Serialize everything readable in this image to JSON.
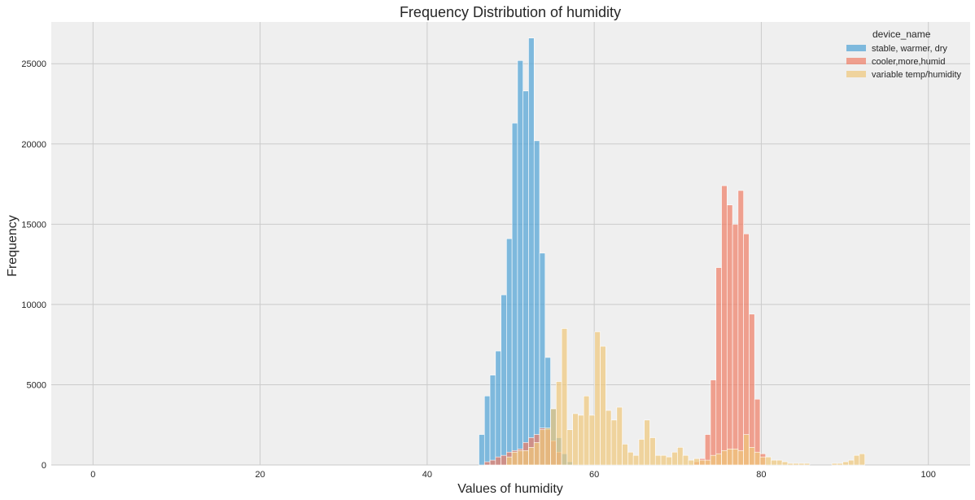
{
  "chart_data": {
    "type": "bar",
    "subtype": "histogram-overlay",
    "title": "Frequency Distribution of humidity",
    "xlabel": "Values of humidity",
    "ylabel": "Frequency",
    "xlim": [
      -5,
      105
    ],
    "ylim": [
      0,
      27600
    ],
    "x_ticks": [
      0,
      20,
      40,
      60,
      80,
      100
    ],
    "y_ticks": [
      0,
      5000,
      10000,
      15000,
      20000,
      25000
    ],
    "grid": true,
    "bin_width": 0.66,
    "legend": {
      "title": "device_name",
      "placement": "top-right"
    },
    "series": [
      {
        "name": "stable, warmer, dry",
        "color": "#4fa3d6",
        "bins": [
          {
            "x": 46.2,
            "y": 1900
          },
          {
            "x": 46.86,
            "y": 4300
          },
          {
            "x": 47.52,
            "y": 5600
          },
          {
            "x": 48.18,
            "y": 7100
          },
          {
            "x": 48.84,
            "y": 10600
          },
          {
            "x": 49.5,
            "y": 14100
          },
          {
            "x": 50.16,
            "y": 21300
          },
          {
            "x": 50.82,
            "y": 25200
          },
          {
            "x": 51.48,
            "y": 23300
          },
          {
            "x": 52.14,
            "y": 26600
          },
          {
            "x": 52.8,
            "y": 20200
          },
          {
            "x": 53.46,
            "y": 13200
          },
          {
            "x": 54.12,
            "y": 6700
          },
          {
            "x": 54.78,
            "y": 3500
          },
          {
            "x": 55.44,
            "y": 1700
          },
          {
            "x": 56.1,
            "y": 700
          },
          {
            "x": 56.76,
            "y": 200
          }
        ]
      },
      {
        "name": "cooler,more,humid",
        "color": "#f07d65",
        "bins": [
          {
            "x": 46.86,
            "y": 200
          },
          {
            "x": 47.52,
            "y": 300
          },
          {
            "x": 48.18,
            "y": 500
          },
          {
            "x": 48.84,
            "y": 600
          },
          {
            "x": 49.5,
            "y": 800
          },
          {
            "x": 50.16,
            "y": 900
          },
          {
            "x": 50.82,
            "y": 1000
          },
          {
            "x": 51.48,
            "y": 1400
          },
          {
            "x": 52.14,
            "y": 1700
          },
          {
            "x": 52.8,
            "y": 1900
          },
          {
            "x": 53.46,
            "y": 2300
          },
          {
            "x": 54.12,
            "y": 2200
          },
          {
            "x": 54.78,
            "y": 1500
          },
          {
            "x": 55.44,
            "y": 800
          },
          {
            "x": 71.94,
            "y": 200
          },
          {
            "x": 72.6,
            "y": 400
          },
          {
            "x": 73.26,
            "y": 1900
          },
          {
            "x": 73.92,
            "y": 5300
          },
          {
            "x": 74.58,
            "y": 12300
          },
          {
            "x": 75.24,
            "y": 17400
          },
          {
            "x": 75.9,
            "y": 16200
          },
          {
            "x": 76.56,
            "y": 15000
          },
          {
            "x": 77.22,
            "y": 17100
          },
          {
            "x": 77.88,
            "y": 14400
          },
          {
            "x": 78.54,
            "y": 9400
          },
          {
            "x": 79.2,
            "y": 4100
          },
          {
            "x": 79.86,
            "y": 700
          }
        ]
      },
      {
        "name": "variable temp/humidity",
        "color": "#f0c87a",
        "bins": [
          {
            "x": 49.5,
            "y": 500
          },
          {
            "x": 50.16,
            "y": 800
          },
          {
            "x": 50.82,
            "y": 900
          },
          {
            "x": 51.48,
            "y": 900
          },
          {
            "x": 52.14,
            "y": 1100
          },
          {
            "x": 52.8,
            "y": 1400
          },
          {
            "x": 53.46,
            "y": 2200
          },
          {
            "x": 54.12,
            "y": 2300
          },
          {
            "x": 54.78,
            "y": 3500
          },
          {
            "x": 55.44,
            "y": 5200
          },
          {
            "x": 56.1,
            "y": 8500
          },
          {
            "x": 56.76,
            "y": 2200
          },
          {
            "x": 57.42,
            "y": 3200
          },
          {
            "x": 58.08,
            "y": 3100
          },
          {
            "x": 58.74,
            "y": 4300
          },
          {
            "x": 59.4,
            "y": 3100
          },
          {
            "x": 60.06,
            "y": 8300
          },
          {
            "x": 60.72,
            "y": 7400
          },
          {
            "x": 61.38,
            "y": 3400
          },
          {
            "x": 62.04,
            "y": 2800
          },
          {
            "x": 62.7,
            "y": 3600
          },
          {
            "x": 63.36,
            "y": 1300
          },
          {
            "x": 64.02,
            "y": 800
          },
          {
            "x": 64.68,
            "y": 600
          },
          {
            "x": 65.34,
            "y": 1600
          },
          {
            "x": 66.0,
            "y": 2800
          },
          {
            "x": 66.66,
            "y": 1700
          },
          {
            "x": 67.32,
            "y": 600
          },
          {
            "x": 67.98,
            "y": 600
          },
          {
            "x": 68.64,
            "y": 500
          },
          {
            "x": 69.3,
            "y": 800
          },
          {
            "x": 69.96,
            "y": 1100
          },
          {
            "x": 70.62,
            "y": 600
          },
          {
            "x": 71.28,
            "y": 300
          },
          {
            "x": 71.94,
            "y": 400
          },
          {
            "x": 72.6,
            "y": 300
          },
          {
            "x": 73.26,
            "y": 300
          },
          {
            "x": 73.92,
            "y": 600
          },
          {
            "x": 74.58,
            "y": 700
          },
          {
            "x": 75.24,
            "y": 900
          },
          {
            "x": 75.9,
            "y": 1000
          },
          {
            "x": 76.56,
            "y": 1000
          },
          {
            "x": 77.22,
            "y": 900
          },
          {
            "x": 77.88,
            "y": 1900
          },
          {
            "x": 78.54,
            "y": 1100
          },
          {
            "x": 79.2,
            "y": 800
          },
          {
            "x": 79.86,
            "y": 500
          },
          {
            "x": 80.52,
            "y": 500
          },
          {
            "x": 81.18,
            "y": 300
          },
          {
            "x": 81.84,
            "y": 300
          },
          {
            "x": 82.5,
            "y": 200
          },
          {
            "x": 83.16,
            "y": 100
          },
          {
            "x": 83.82,
            "y": 100
          },
          {
            "x": 84.48,
            "y": 100
          },
          {
            "x": 85.14,
            "y": 100
          },
          {
            "x": 88.44,
            "y": 100
          },
          {
            "x": 89.1,
            "y": 100
          },
          {
            "x": 89.76,
            "y": 200
          },
          {
            "x": 90.42,
            "y": 300
          },
          {
            "x": 91.08,
            "y": 600
          },
          {
            "x": 91.74,
            "y": 700
          }
        ]
      }
    ]
  }
}
